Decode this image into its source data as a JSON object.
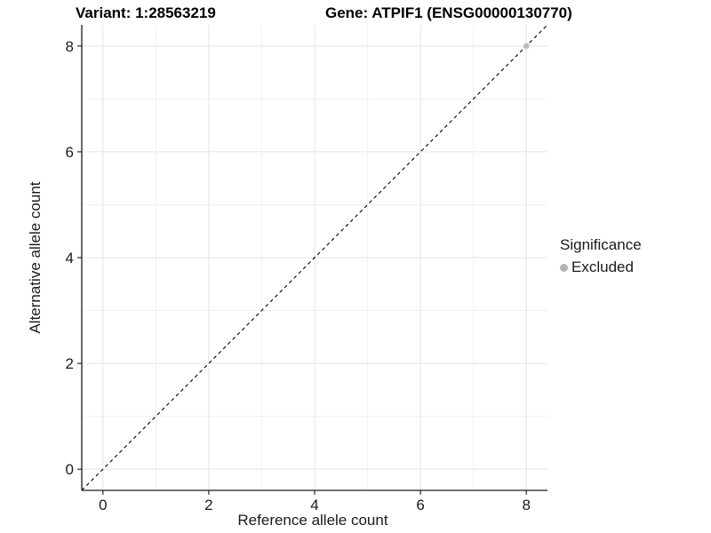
{
  "titles": {
    "variant": "Variant: 1:28563219",
    "gene": "Gene: ATPIF1 (ENSG00000130770)"
  },
  "legend": {
    "title": "Significance",
    "items": [
      {
        "label": "Excluded",
        "color": "#b3b3b3"
      }
    ]
  },
  "chart_data": {
    "type": "scatter",
    "title": "Variant: 1:28563219 / Gene: ATPIF1 (ENSG00000130770)",
    "xlabel": "Reference allele count",
    "ylabel": "Alternative allele count",
    "xlim": [
      -0.4,
      8.4
    ],
    "ylim": [
      -0.4,
      8.4
    ],
    "x_ticks": [
      0,
      2,
      4,
      6,
      8
    ],
    "y_ticks": [
      0,
      2,
      4,
      6,
      8
    ],
    "x_minor_ticks": [
      1,
      3,
      5,
      7
    ],
    "y_minor_ticks": [
      1,
      3,
      5,
      7
    ],
    "grid": true,
    "legend_position": "right",
    "series": [
      {
        "name": "Excluded",
        "color": "#bcbcbc",
        "point_opacity": 0.9,
        "points": [
          {
            "x": 8,
            "y": 8
          }
        ]
      }
    ],
    "reference_line": {
      "kind": "identity",
      "style": "dashed",
      "color": "#000000"
    },
    "colors": {
      "panel_background": "#ffffff",
      "grid_major": "#e4e4e4",
      "grid_minor": "#f1f1f1",
      "axis_line": "#1a1a1a",
      "tick_text": "#1a1a1a"
    }
  }
}
